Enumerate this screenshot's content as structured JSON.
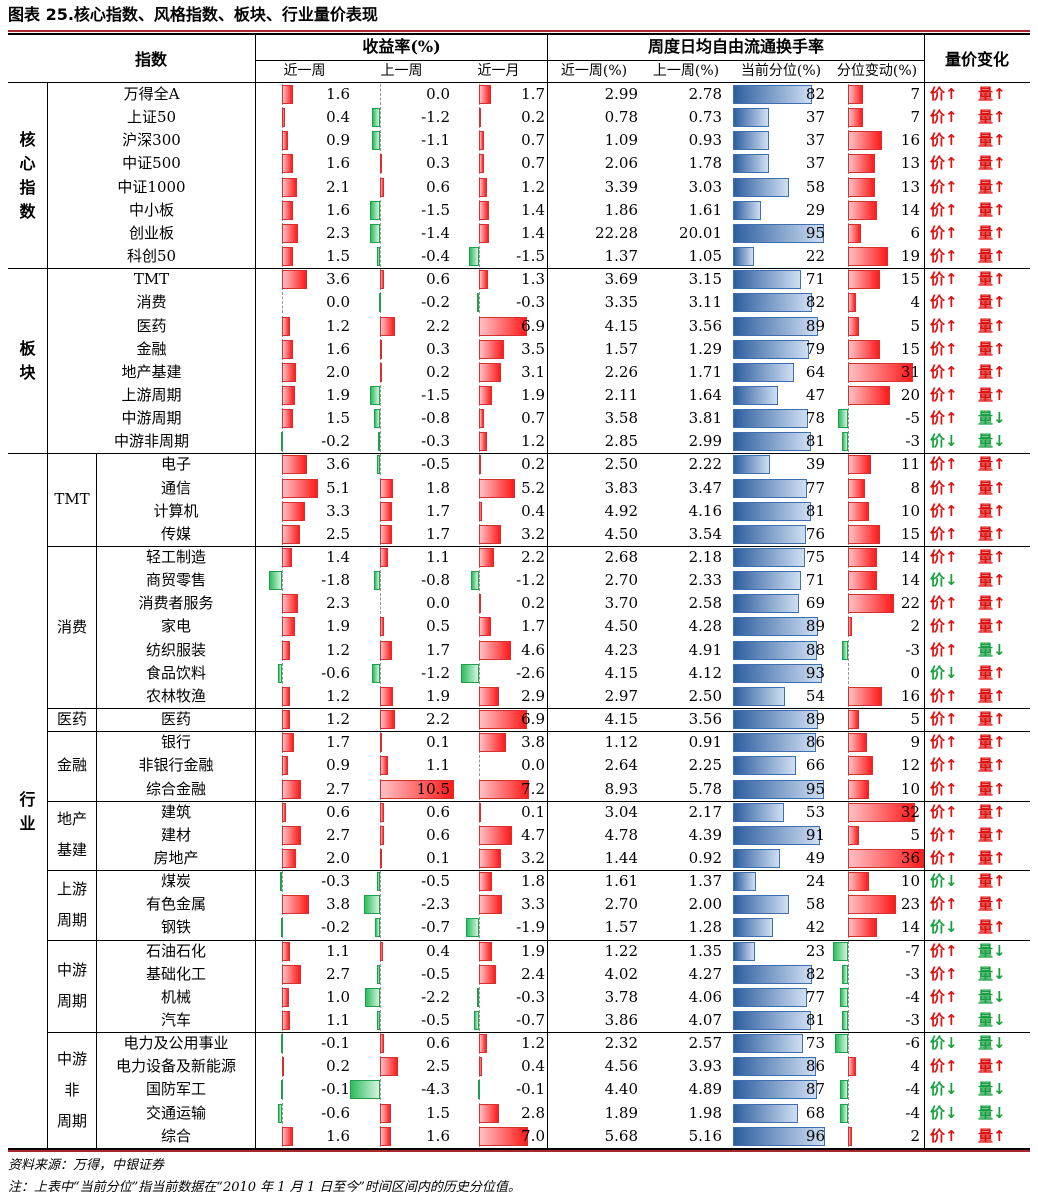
{
  "title": "图表 25.核心指数、风格指数、板块、行业量价表现",
  "header": {
    "index_col": "指数",
    "returns_group": "收益率(%)",
    "turnover_group": "周度日均自由流通换手率",
    "pv_group": "量价变化",
    "sub": {
      "r1": "近一周",
      "r2": "上一周",
      "r3": "近一月",
      "t1": "近一周(%)",
      "t2": "上一周(%)",
      "t3": "当前分位(%)",
      "t4": "分位变动(%)"
    }
  },
  "groups": [
    {
      "label": "核\n心\n指\n数",
      "rows": [
        0,
        7
      ]
    },
    {
      "label": "板\n块",
      "rows": [
        8,
        15
      ]
    },
    {
      "label": "行\n业",
      "rows": [
        16,
        46
      ]
    }
  ],
  "subgroups": [
    {
      "label": "TMT",
      "rows": [
        16,
        19
      ]
    },
    {
      "label": "消费",
      "rows": [
        20,
        26
      ]
    },
    {
      "label": "医药",
      "rows": [
        27,
        27
      ]
    },
    {
      "label": "金融",
      "rows": [
        28,
        30
      ]
    },
    {
      "label": "地产\n基建",
      "rows": [
        31,
        33
      ]
    },
    {
      "label": "上游\n周期",
      "rows": [
        34,
        36
      ]
    },
    {
      "label": "中游\n周期",
      "rows": [
        37,
        40
      ]
    },
    {
      "label": "中游\n非\n周期",
      "rows": [
        41,
        45
      ]
    }
  ],
  "labels": {
    "price": "价",
    "volume": "量"
  },
  "arrow_icons": {
    "up": "arrow-up-icon",
    "down": "arrow-down-icon"
  },
  "colors": {
    "red": "#ff1a1a",
    "green": "#2dbe5e",
    "blue": "#2e5ea0",
    "title_rule": "#a8292b"
  },
  "rows": [
    {
      "name": "万得全A",
      "r1": 1.6,
      "r2": 0.0,
      "r3": 1.7,
      "t1": "2.99",
      "t2": "2.78",
      "pct": 82,
      "chg": 7,
      "price": "up",
      "vol": "up"
    },
    {
      "name": "上证50",
      "r1": 0.4,
      "r2": -1.2,
      "r3": 0.2,
      "t1": "0.78",
      "t2": "0.73",
      "pct": 37,
      "chg": 7,
      "price": "up",
      "vol": "up"
    },
    {
      "name": "沪深300",
      "r1": 0.9,
      "r2": -1.1,
      "r3": 0.7,
      "t1": "1.09",
      "t2": "0.93",
      "pct": 37,
      "chg": 16,
      "price": "up",
      "vol": "up"
    },
    {
      "name": "中证500",
      "r1": 1.6,
      "r2": 0.3,
      "r3": 0.7,
      "t1": "2.06",
      "t2": "1.78",
      "pct": 37,
      "chg": 13,
      "price": "up",
      "vol": "up"
    },
    {
      "name": "中证1000",
      "r1": 2.1,
      "r2": 0.6,
      "r3": 1.2,
      "t1": "3.39",
      "t2": "3.03",
      "pct": 58,
      "chg": 13,
      "price": "up",
      "vol": "up"
    },
    {
      "name": "中小板",
      "r1": 1.6,
      "r2": -1.5,
      "r3": 1.4,
      "t1": "1.86",
      "t2": "1.61",
      "pct": 29,
      "chg": 14,
      "price": "up",
      "vol": "up"
    },
    {
      "name": "创业板",
      "r1": 2.3,
      "r2": -1.4,
      "r3": 1.4,
      "t1": "22.28",
      "t2": "20.01",
      "pct": 95,
      "chg": 6,
      "price": "up",
      "vol": "up"
    },
    {
      "name": "科创50",
      "r1": 1.5,
      "r2": -0.4,
      "r3": -1.5,
      "t1": "1.37",
      "t2": "1.05",
      "pct": 22,
      "chg": 19,
      "price": "up",
      "vol": "up"
    },
    {
      "name": "TMT",
      "r1": 3.6,
      "r2": 0.6,
      "r3": 1.3,
      "t1": "3.69",
      "t2": "3.15",
      "pct": 71,
      "chg": 15,
      "price": "up",
      "vol": "up"
    },
    {
      "name": "消费",
      "r1": 0.0,
      "r2": -0.2,
      "r3": -0.3,
      "t1": "3.35",
      "t2": "3.11",
      "pct": 82,
      "chg": 4,
      "price": "up",
      "vol": "up"
    },
    {
      "name": "医药",
      "r1": 1.2,
      "r2": 2.2,
      "r3": 6.9,
      "t1": "4.15",
      "t2": "3.56",
      "pct": 89,
      "chg": 5,
      "price": "up",
      "vol": "up"
    },
    {
      "name": "金融",
      "r1": 1.6,
      "r2": 0.3,
      "r3": 3.5,
      "t1": "1.57",
      "t2": "1.29",
      "pct": 79,
      "chg": 15,
      "price": "up",
      "vol": "up"
    },
    {
      "name": "地产基建",
      "r1": 2.0,
      "r2": 0.2,
      "r3": 3.1,
      "t1": "2.26",
      "t2": "1.71",
      "pct": 64,
      "chg": 31,
      "price": "up",
      "vol": "up"
    },
    {
      "name": "上游周期",
      "r1": 1.9,
      "r2": -1.5,
      "r3": 1.9,
      "t1": "2.11",
      "t2": "1.64",
      "pct": 47,
      "chg": 20,
      "price": "up",
      "vol": "up"
    },
    {
      "name": "中游周期",
      "r1": 1.5,
      "r2": -0.8,
      "r3": 0.7,
      "t1": "3.58",
      "t2": "3.81",
      "pct": 78,
      "chg": -5,
      "price": "up",
      "vol": "down"
    },
    {
      "name": "中游非周期",
      "r1": -0.2,
      "r2": -0.3,
      "r3": 1.2,
      "t1": "2.85",
      "t2": "2.99",
      "pct": 81,
      "chg": -3,
      "price": "down",
      "vol": "down"
    },
    {
      "name": "电子",
      "r1": 3.6,
      "r2": -0.5,
      "r3": 0.2,
      "t1": "2.50",
      "t2": "2.22",
      "pct": 39,
      "chg": 11,
      "price": "up",
      "vol": "up"
    },
    {
      "name": "通信",
      "r1": 5.1,
      "r2": 1.8,
      "r3": 5.2,
      "t1": "3.83",
      "t2": "3.47",
      "pct": 77,
      "chg": 8,
      "price": "up",
      "vol": "up"
    },
    {
      "name": "计算机",
      "r1": 3.3,
      "r2": 1.7,
      "r3": 0.4,
      "t1": "4.92",
      "t2": "4.16",
      "pct": 81,
      "chg": 10,
      "price": "up",
      "vol": "up"
    },
    {
      "name": "传媒",
      "r1": 2.5,
      "r2": 1.7,
      "r3": 3.2,
      "t1": "4.50",
      "t2": "3.54",
      "pct": 76,
      "chg": 15,
      "price": "up",
      "vol": "up"
    },
    {
      "name": "轻工制造",
      "r1": 1.4,
      "r2": 1.1,
      "r3": 2.2,
      "t1": "2.68",
      "t2": "2.18",
      "pct": 75,
      "chg": 14,
      "price": "up",
      "vol": "up"
    },
    {
      "name": "商贸零售",
      "r1": -1.8,
      "r2": -0.8,
      "r3": -1.2,
      "t1": "2.70",
      "t2": "2.33",
      "pct": 71,
      "chg": 14,
      "price": "down",
      "vol": "up"
    },
    {
      "name": "消费者服务",
      "r1": 2.3,
      "r2": 0.0,
      "r3": 0.2,
      "t1": "3.70",
      "t2": "2.58",
      "pct": 69,
      "chg": 22,
      "price": "up",
      "vol": "up"
    },
    {
      "name": "家电",
      "r1": 1.9,
      "r2": 0.5,
      "r3": 1.7,
      "t1": "4.50",
      "t2": "4.28",
      "pct": 89,
      "chg": 2,
      "price": "up",
      "vol": "up"
    },
    {
      "name": "纺织服装",
      "r1": 1.2,
      "r2": 1.7,
      "r3": 4.6,
      "t1": "4.23",
      "t2": "4.91",
      "pct": 88,
      "chg": -3,
      "price": "up",
      "vol": "down"
    },
    {
      "name": "食品饮料",
      "r1": -0.6,
      "r2": -1.2,
      "r3": -2.6,
      "t1": "4.15",
      "t2": "4.12",
      "pct": 93,
      "chg": 0,
      "price": "down",
      "vol": "up"
    },
    {
      "name": "农林牧渔",
      "r1": 1.2,
      "r2": 1.9,
      "r3": 2.9,
      "t1": "2.97",
      "t2": "2.50",
      "pct": 54,
      "chg": 16,
      "price": "up",
      "vol": "up"
    },
    {
      "name": "医药",
      "r1": 1.2,
      "r2": 2.2,
      "r3": 6.9,
      "t1": "4.15",
      "t2": "3.56",
      "pct": 89,
      "chg": 5,
      "price": "up",
      "vol": "up"
    },
    {
      "name": "银行",
      "r1": 1.7,
      "r2": 0.1,
      "r3": 3.8,
      "t1": "1.12",
      "t2": "0.91",
      "pct": 86,
      "chg": 9,
      "price": "up",
      "vol": "up"
    },
    {
      "name": "非银行金融",
      "r1": 0.9,
      "r2": 1.1,
      "r3": 0.0,
      "t1": "2.64",
      "t2": "2.25",
      "pct": 66,
      "chg": 12,
      "price": "up",
      "vol": "up"
    },
    {
      "name": "综合金融",
      "r1": 2.7,
      "r2": 10.5,
      "r3": 7.2,
      "t1": "8.93",
      "t2": "5.78",
      "pct": 95,
      "chg": 10,
      "price": "up",
      "vol": "up"
    },
    {
      "name": "建筑",
      "r1": 0.6,
      "r2": 0.6,
      "r3": 0.1,
      "t1": "3.04",
      "t2": "2.17",
      "pct": 53,
      "chg": 32,
      "price": "up",
      "vol": "up"
    },
    {
      "name": "建材",
      "r1": 2.7,
      "r2": 0.6,
      "r3": 4.7,
      "t1": "4.78",
      "t2": "4.39",
      "pct": 91,
      "chg": 5,
      "price": "up",
      "vol": "up"
    },
    {
      "name": "房地产",
      "r1": 2.0,
      "r2": 0.1,
      "r3": 3.2,
      "t1": "1.44",
      "t2": "0.92",
      "pct": 49,
      "chg": 36,
      "price": "up",
      "vol": "up"
    },
    {
      "name": "煤炭",
      "r1": -0.3,
      "r2": -0.5,
      "r3": 1.8,
      "t1": "1.61",
      "t2": "1.37",
      "pct": 24,
      "chg": 10,
      "price": "down",
      "vol": "up"
    },
    {
      "name": "有色金属",
      "r1": 3.8,
      "r2": -2.3,
      "r3": 3.3,
      "t1": "2.70",
      "t2": "2.00",
      "pct": 58,
      "chg": 23,
      "price": "up",
      "vol": "up"
    },
    {
      "name": "钢铁",
      "r1": -0.2,
      "r2": -0.7,
      "r3": -1.9,
      "t1": "1.57",
      "t2": "1.28",
      "pct": 42,
      "chg": 14,
      "price": "down",
      "vol": "up"
    },
    {
      "name": "石油石化",
      "r1": 1.1,
      "r2": 0.4,
      "r3": 1.9,
      "t1": "1.22",
      "t2": "1.35",
      "pct": 23,
      "chg": -7,
      "price": "up",
      "vol": "down"
    },
    {
      "name": "基础化工",
      "r1": 2.7,
      "r2": -0.5,
      "r3": 2.4,
      "t1": "4.02",
      "t2": "4.27",
      "pct": 82,
      "chg": -3,
      "price": "up",
      "vol": "down"
    },
    {
      "name": "机械",
      "r1": 1.0,
      "r2": -2.2,
      "r3": -0.3,
      "t1": "3.78",
      "t2": "4.06",
      "pct": 77,
      "chg": -4,
      "price": "up",
      "vol": "down"
    },
    {
      "name": "汽车",
      "r1": 1.1,
      "r2": -0.5,
      "r3": -0.7,
      "t1": "3.86",
      "t2": "4.07",
      "pct": 81,
      "chg": -3,
      "price": "up",
      "vol": "down"
    },
    {
      "name": "电力及公用事业",
      "r1": -0.1,
      "r2": 0.6,
      "r3": 1.2,
      "t1": "2.32",
      "t2": "2.57",
      "pct": 73,
      "chg": -6,
      "price": "down",
      "vol": "down"
    },
    {
      "name": "电力设备及新能源",
      "r1": 0.2,
      "r2": 2.5,
      "r3": 0.4,
      "t1": "4.56",
      "t2": "3.93",
      "pct": 86,
      "chg": 4,
      "price": "up",
      "vol": "up"
    },
    {
      "name": "国防军工",
      "r1": -0.1,
      "r2": -4.3,
      "r3": -0.1,
      "t1": "4.40",
      "t2": "4.89",
      "pct": 87,
      "chg": -4,
      "price": "down",
      "vol": "down"
    },
    {
      "name": "交通运输",
      "r1": -0.6,
      "r2": 1.5,
      "r3": 2.8,
      "t1": "1.89",
      "t2": "1.98",
      "pct": 68,
      "chg": -4,
      "price": "down",
      "vol": "down"
    },
    {
      "name": "综合",
      "r1": 1.6,
      "r2": 1.6,
      "r3": 7.0,
      "t1": "5.68",
      "t2": "5.16",
      "pct": 96,
      "chg": 2,
      "price": "up",
      "vol": "up"
    }
  ],
  "footnotes": {
    "source": "资料来源：万得，中银证券",
    "note": "注：上表中“当前分位”指当前数据在“2010 年 1 月 1 日至今”时间区间内的历史分位值。"
  }
}
